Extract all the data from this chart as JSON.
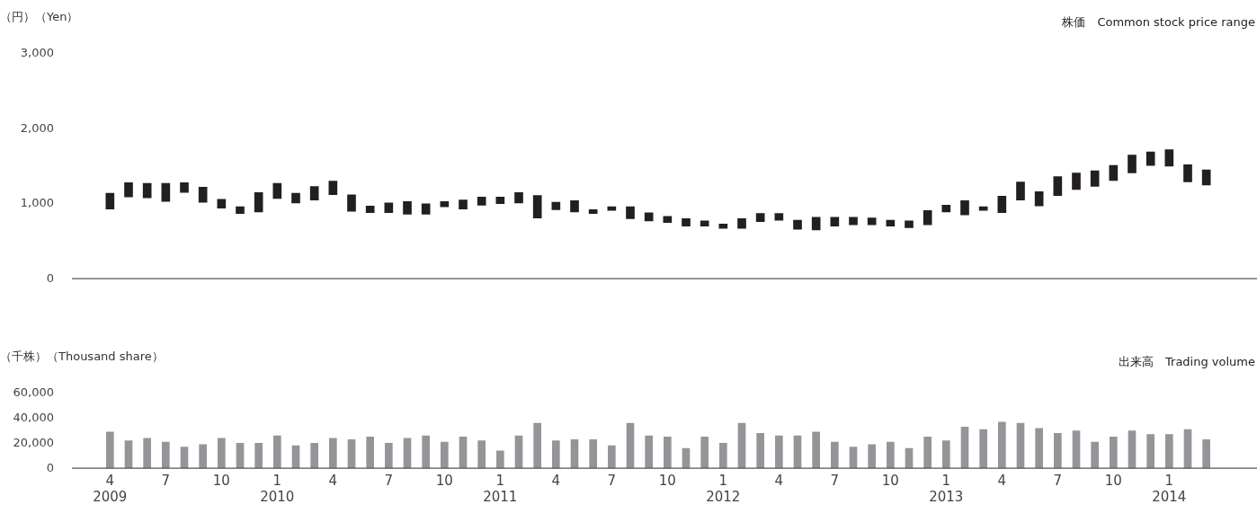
{
  "chart_data": [
    {
      "type": "bar",
      "title": "株価　Common stock price range",
      "ylabel": "（円）（Yen）",
      "base": [
        930,
        1090,
        1080,
        1030,
        1150,
        1020,
        940,
        870,
        890,
        1070,
        1010,
        1050,
        1120,
        900,
        880,
        880,
        860,
        860,
        960,
        930,
        980,
        1000,
        1010,
        810,
        920,
        890,
        870,
        910,
        800,
        770,
        750,
        700,
        700,
        670,
        670,
        760,
        780,
        660,
        650,
        700,
        720,
        720,
        700,
        680,
        720,
        890,
        850,
        910,
        880,
        1050,
        970,
        1110,
        1190,
        1230,
        1310,
        1410,
        1510,
        1500,
        1290,
        1250
      ],
      "values": [
        210,
        190,
        190,
        240,
        130,
        200,
        120,
        90,
        260,
        200,
        130,
        180,
        180,
        220,
        90,
        130,
        170,
        140,
        70,
        120,
        110,
        90,
        140,
        300,
        100,
        150,
        50,
        50,
        160,
        110,
        80,
        100,
        70,
        60,
        130,
        110,
        90,
        120,
        170,
        120,
        100,
        90,
        80,
        90,
        190,
        90,
        190,
        50,
        220,
        240,
        190,
        250,
        220,
        210,
        200,
        240,
        180,
        220,
        230,
        200
      ],
      "color": "#231f20",
      "ylim": [
        0,
        3000
      ],
      "yticks": [
        {
          "value": 0,
          "label": "0"
        },
        {
          "value": 1000,
          "label": "1,000"
        },
        {
          "value": 2000,
          "label": "2,000"
        },
        {
          "value": 3000,
          "label": "3,000"
        }
      ],
      "tick_labels": "y",
      "grid": false,
      "legend": false
    },
    {
      "type": "bar",
      "title": "出来高　Trading volume",
      "ylabel": "（千株）（Thousand share）",
      "categories": [
        "4\n2009",
        null,
        null,
        "7",
        null,
        null,
        "10",
        null,
        null,
        "1\n2010",
        null,
        null,
        "4",
        null,
        null,
        "7",
        null,
        null,
        "10",
        null,
        null,
        "1\n2011",
        null,
        null,
        "4",
        null,
        null,
        "7",
        null,
        null,
        "10",
        null,
        null,
        "1\n2012",
        null,
        null,
        "4",
        null,
        null,
        "7",
        null,
        null,
        "10",
        null,
        null,
        "1\n2013",
        null,
        null,
        "4",
        null,
        null,
        "7",
        null,
        null,
        "10",
        null,
        null,
        "1\n2014",
        null,
        null
      ],
      "values": [
        29000,
        22000,
        24000,
        21000,
        17000,
        19000,
        24000,
        20000,
        20000,
        26000,
        18000,
        20000,
        24000,
        23000,
        25000,
        20000,
        24000,
        26000,
        21000,
        25000,
        22000,
        14000,
        26000,
        36000,
        22000,
        23000,
        23000,
        18000,
        36000,
        26000,
        25000,
        16000,
        25000,
        20000,
        36000,
        28000,
        26000,
        26000,
        29000,
        21000,
        17000,
        19000,
        21000,
        16000,
        25000,
        22000,
        33000,
        31000,
        37000,
        36000,
        32000,
        28000,
        30000,
        21000,
        25000,
        30000,
        27000,
        27000,
        31000,
        23000
      ],
      "color": "#939598",
      "ylim": [
        0,
        60000
      ],
      "yticks": [
        {
          "value": 0,
          "label": "0"
        },
        {
          "value": 20000,
          "label": "20,000"
        },
        {
          "value": 40000,
          "label": "40,000"
        },
        {
          "value": 60000,
          "label": "60,000"
        }
      ],
      "grid": false,
      "legend": false
    }
  ]
}
